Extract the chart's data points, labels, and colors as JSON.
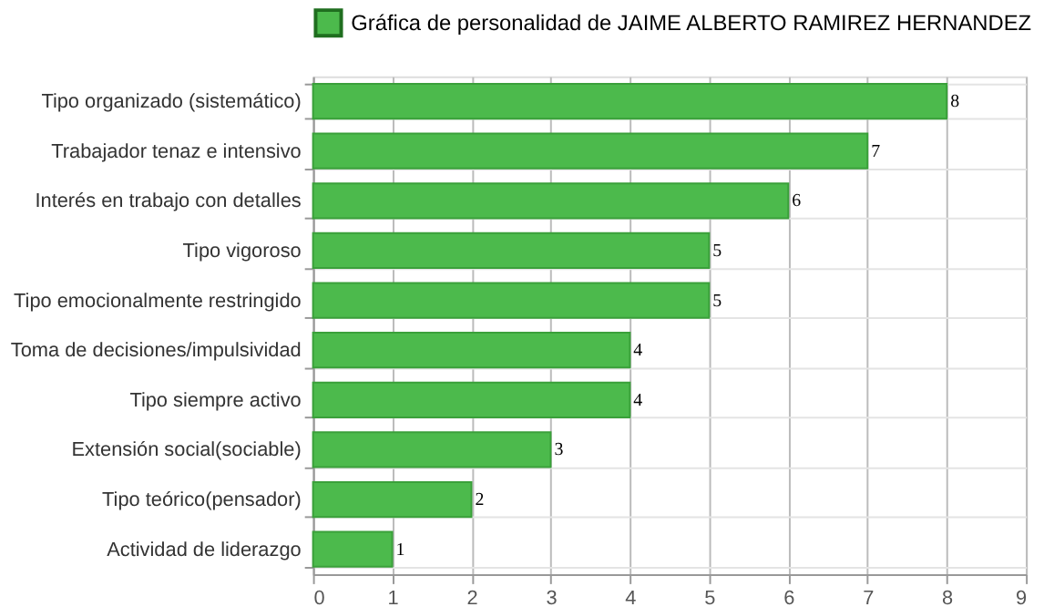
{
  "chart_data": {
    "type": "bar",
    "orientation": "horizontal",
    "categories": [
      "Tipo organizado (sistemático)",
      "Trabajador tenaz e intensivo",
      "Interés en trabajo con detalles",
      "Tipo vigoroso",
      "Tipo emocionalmente restringido",
      "Toma de decisiones/impulsividad",
      "Tipo siempre activo",
      "Extensión social(sociable)",
      "Tipo teórico(pensador)",
      "Actividad de liderazgo"
    ],
    "series": [
      {
        "name": "Gráfica de personalidad de JAIME ALBERTO RAMIREZ HERNANDEZ",
        "color": "#4cba4c",
        "values": [
          8,
          7,
          6,
          5,
          5,
          4,
          4,
          3,
          2,
          1
        ]
      }
    ],
    "xlim": [
      0,
      9
    ],
    "xticks": [
      0,
      1,
      2,
      3,
      4,
      5,
      6,
      7,
      8,
      9
    ],
    "grid": true,
    "legend": "top",
    "data_labels": true
  }
}
